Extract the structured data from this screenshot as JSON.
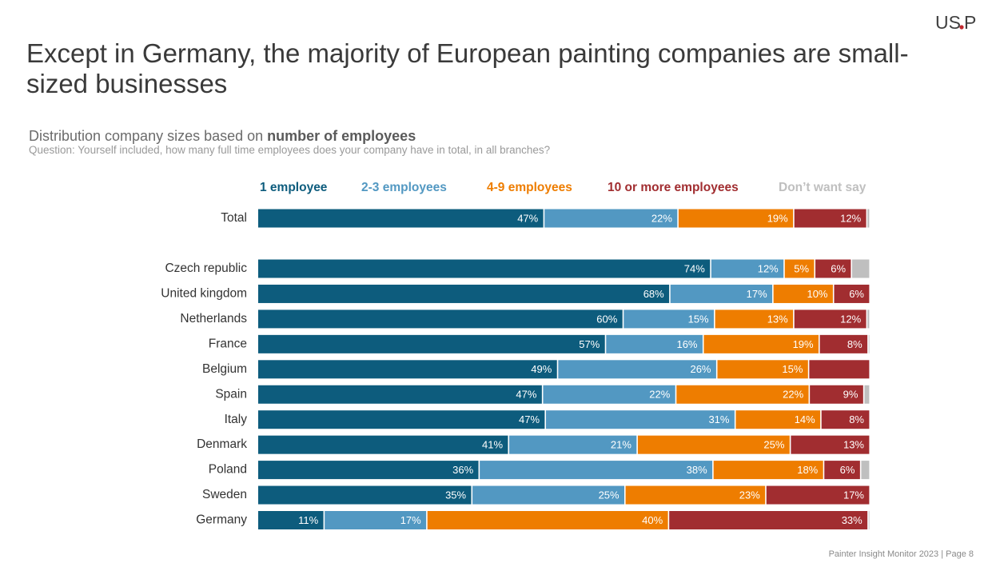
{
  "slide": {
    "title": "Except in Germany, the majority of European painting companies are small-sized businesses",
    "subtitle_prefix": "Distribution company sizes based on ",
    "subtitle_bold": "number of employees",
    "question": "Question: Yourself included, how many full time employees does your company have in total, in all branches?",
    "footer": "Painter Insight Monitor 2023 | Page 8",
    "logo_left": "US",
    "logo_right": "P"
  },
  "chart_data": {
    "type": "bar",
    "orientation": "horizontal",
    "stacked": true,
    "unit": "%",
    "xlim": [
      0,
      100
    ],
    "grid": false,
    "legend_position": "top",
    "categories": [
      "Total",
      "Czech republic",
      "United kingdom",
      "Netherlands",
      "France",
      "Belgium",
      "Spain",
      "Italy",
      "Denmark",
      "Poland",
      "Sweden",
      "Germany"
    ],
    "series": [
      {
        "name": "1 employee",
        "color": "#0d5c7d",
        "values": [
          47,
          74,
          68,
          60,
          57,
          49,
          47,
          47,
          41,
          36,
          35,
          11
        ],
        "labels": [
          "47%",
          "74%",
          "68%",
          "60%",
          "57%",
          "49%",
          "47%",
          "47%",
          "41%",
          "36%",
          "35%",
          "11%"
        ]
      },
      {
        "name": "2-3 employees",
        "color": "#5298c2",
        "values": [
          22,
          12,
          17,
          15,
          16,
          26,
          22,
          31,
          21,
          38,
          25,
          17
        ],
        "labels": [
          "22%",
          "12%",
          "17%",
          "15%",
          "16%",
          "26%",
          "22%",
          "31%",
          "21%",
          "38%",
          "25%",
          "17%"
        ]
      },
      {
        "name": "4-9 employees",
        "color": "#ee7d00",
        "values": [
          19,
          5,
          10,
          13,
          19,
          15,
          22,
          14,
          25,
          18,
          23,
          40
        ],
        "labels": [
          "19%",
          "5%",
          "10%",
          "13%",
          "19%",
          "15%",
          "22%",
          "14%",
          "25%",
          "18%",
          "23%",
          "40%"
        ]
      },
      {
        "name": "10 or more employees",
        "color": "#a12d30",
        "values": [
          12,
          6,
          6,
          12,
          8,
          10,
          9,
          8,
          13,
          6,
          17,
          33
        ],
        "labels": [
          "12%",
          "6%",
          "6%",
          "12%",
          "8%",
          "",
          "9%",
          "8%",
          "13%",
          "6%",
          "17%",
          "33%"
        ]
      },
      {
        "name": "Don’t want say",
        "color": "#bfbfbf",
        "values": [
          0.5,
          3,
          0,
          0.5,
          0.3,
          0,
          1,
          0,
          0,
          1.5,
          0,
          0.3
        ],
        "labels": [
          "",
          "",
          "",
          "",
          "",
          "",
          "",
          "",
          "",
          "",
          "",
          ""
        ]
      }
    ]
  }
}
